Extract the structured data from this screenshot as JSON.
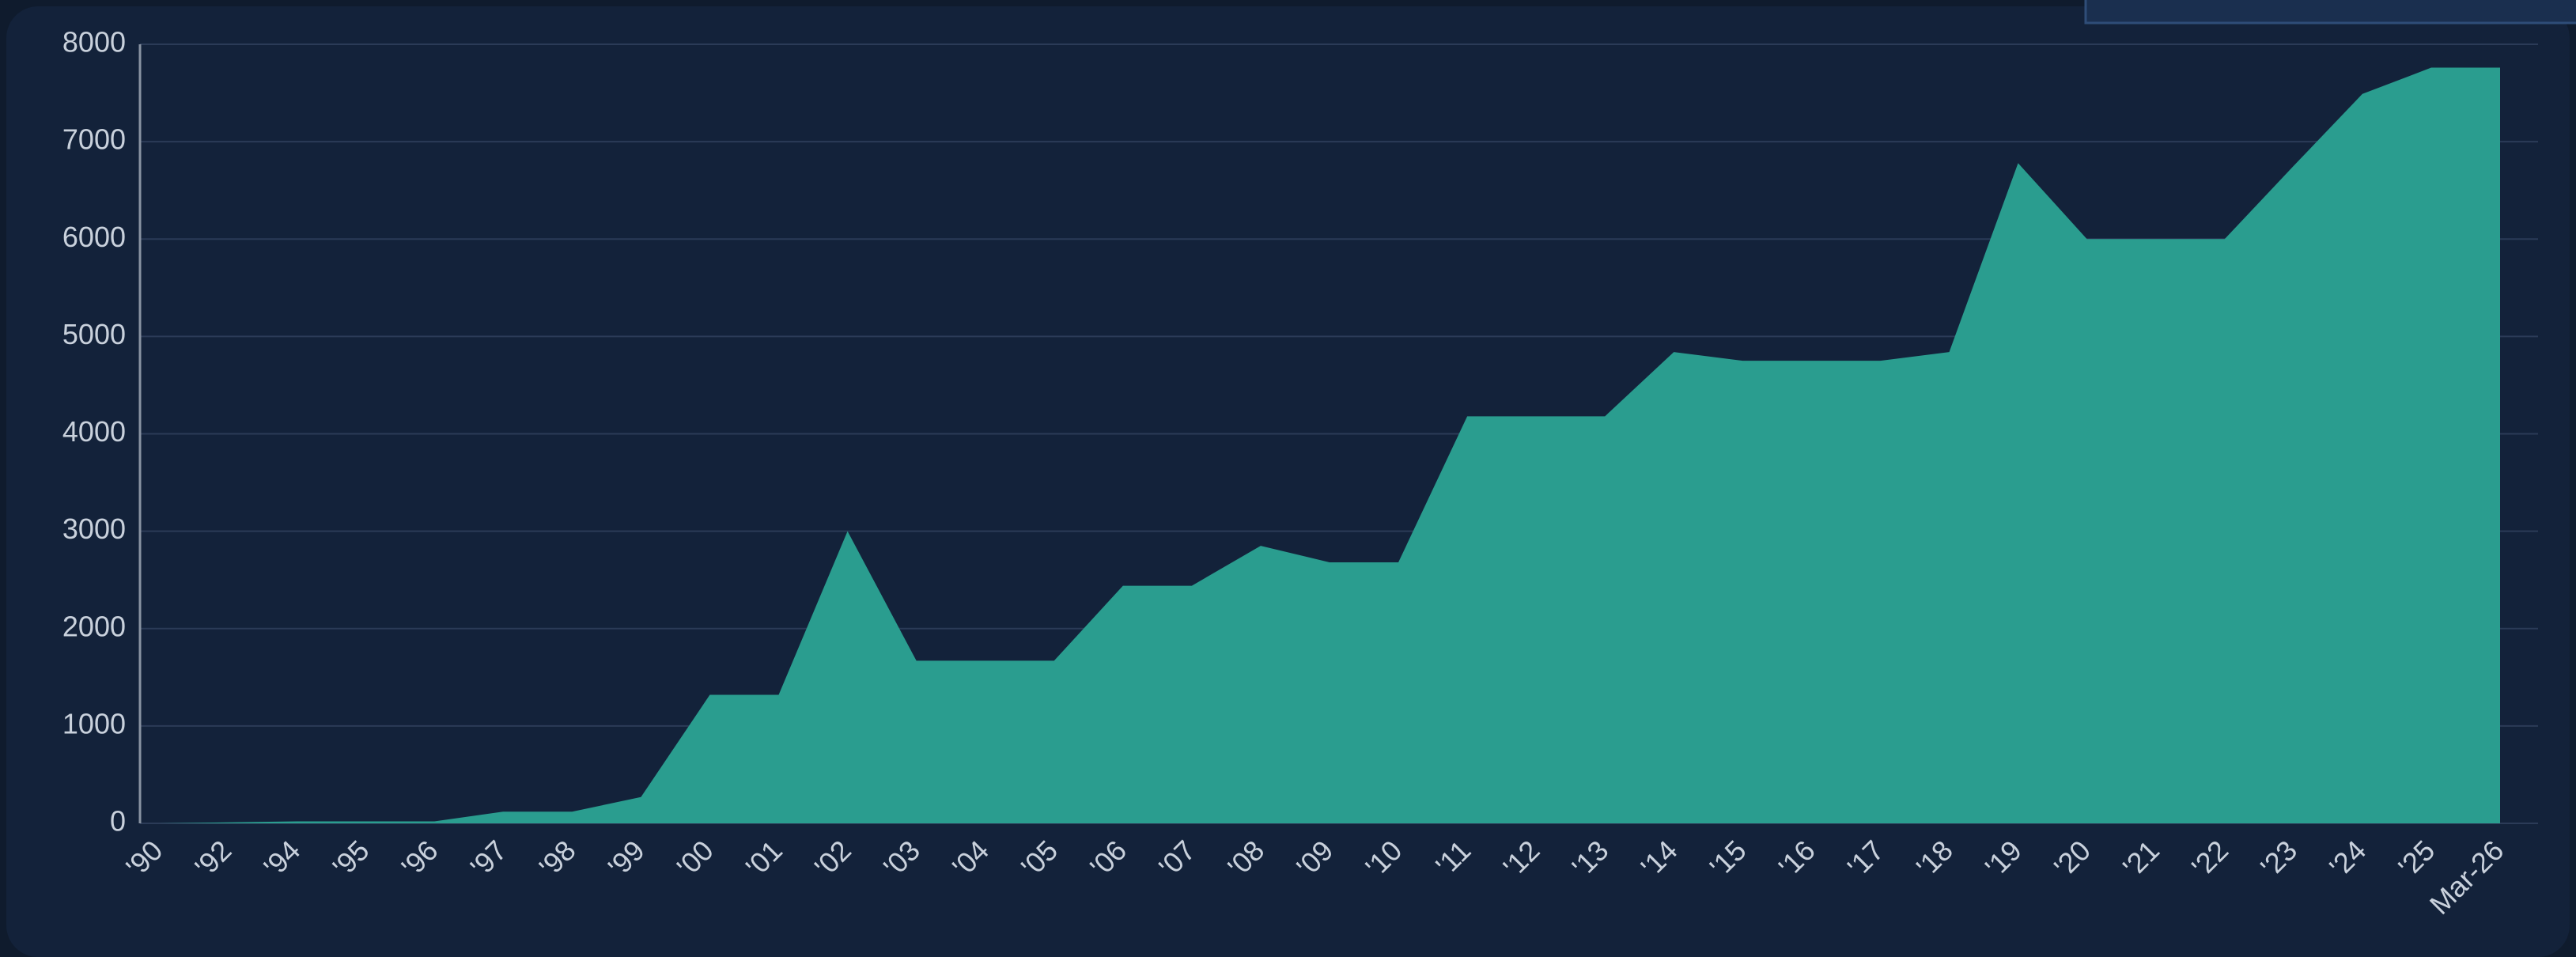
{
  "chart_data": {
    "type": "area",
    "color": "#2a9d8f",
    "grid": true,
    "categories": [
      "'90",
      "'92",
      "'94",
      "'95",
      "'96",
      "'97",
      "'98",
      "'99",
      "'00",
      "'01",
      "'02",
      "'03",
      "'04",
      "'05",
      "'06",
      "'07",
      "'08",
      "'09",
      "'10",
      "'11",
      "'12",
      "'13",
      "'14",
      "'15",
      "'16",
      "'17",
      "'18",
      "'19",
      "'20",
      "'21",
      "'22",
      "'23",
      "'24",
      "'25",
      "Mar-26"
    ],
    "values": [
      0,
      10,
      20,
      20,
      20,
      120,
      120,
      270,
      1320,
      1320,
      3000,
      1670,
      1670,
      1670,
      2440,
      2440,
      2850,
      2680,
      2680,
      4180,
      4180,
      4180,
      4840,
      4750,
      4750,
      4750,
      4840,
      6780,
      6000,
      6000,
      6000,
      6750,
      7490,
      7760,
      7760
    ],
    "ylim": [
      0,
      8000
    ],
    "yticks": [
      0,
      1000,
      2000,
      3000,
      4000,
      5000,
      6000,
      7000,
      8000
    ]
  }
}
